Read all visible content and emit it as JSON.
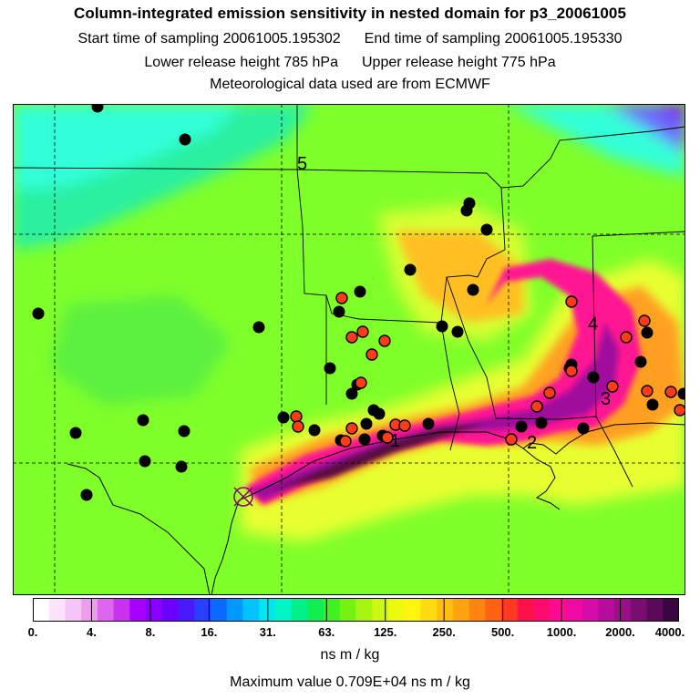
{
  "header": {
    "title": "Column-integrated emission sensitivity in nested domain for p3_20061005",
    "start_label": "Start time of sampling 20061005.195302",
    "end_label": "End time of sampling 20061005.195330",
    "lower_label": "Lower release height  785 hPa",
    "upper_label": "Upper release height  775 hPa",
    "met_label": "Meteorological data used are from ECMWF"
  },
  "map": {
    "region_labels": [
      "1",
      "2",
      "3",
      "4",
      "5"
    ],
    "colors": {
      "background": "#7fff2a",
      "cyan": "#33ffd9",
      "yellow": "#e8ff30",
      "orange": "#ffa020",
      "magenta": "#ff1493",
      "purple": "#a0109c",
      "dark": "#5a0840",
      "marker_black": "#000000",
      "marker_red": "#ff3b1a"
    }
  },
  "colorbar": {
    "tick_labels": [
      "0.",
      "4.",
      "8.",
      "16.",
      "31.",
      "63.",
      "125.",
      "250.",
      "500.",
      "1000.",
      "2000.",
      "4000."
    ],
    "segment_colors": [
      "#ffffff",
      "#fbe3fb",
      "#f6c4f6",
      "#ee9cf0",
      "#dd66ee",
      "#c933f0",
      "#a800ff",
      "#8800ff",
      "#6a00ff",
      "#4a1aff",
      "#2840ff",
      "#0a6aff",
      "#0099ff",
      "#00c3ff",
      "#00e6f0",
      "#00f5c8",
      "#00f08a",
      "#10ee50",
      "#40f020",
      "#76f212",
      "#a6f510",
      "#cdf810",
      "#ecfa10",
      "#fff310",
      "#ffdb10",
      "#ffbf10",
      "#ffa310",
      "#ff8410",
      "#ff6210",
      "#ff3820",
      "#ff1048",
      "#ff0a6e",
      "#ff0a90",
      "#f00aa4",
      "#d80aa8",
      "#b80c9c",
      "#9a0e88",
      "#7a0e70",
      "#5a0a58",
      "#3a0640"
    ],
    "units": "ns m / kg"
  },
  "footer": {
    "max_value": "Maximum value  0.709E+04 ns m / kg"
  }
}
